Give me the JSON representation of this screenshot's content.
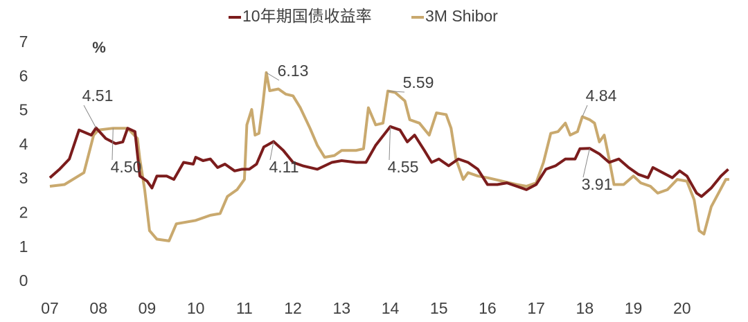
{
  "chart_data": {
    "type": "line",
    "unit_label": "%",
    "xlim": [
      2007,
      2021
    ],
    "ylim": [
      0,
      7
    ],
    "xticks": [
      {
        "value": 2007,
        "label": "07"
      },
      {
        "value": 2008,
        "label": "08"
      },
      {
        "value": 2009,
        "label": "09"
      },
      {
        "value": 2010,
        "label": "10"
      },
      {
        "value": 2011,
        "label": "11"
      },
      {
        "value": 2012,
        "label": "12"
      },
      {
        "value": 2013,
        "label": "13"
      },
      {
        "value": 2014,
        "label": "14"
      },
      {
        "value": 2015,
        "label": "15"
      },
      {
        "value": 2016,
        "label": "16"
      },
      {
        "value": 2017,
        "label": "17"
      },
      {
        "value": 2018,
        "label": "18"
      },
      {
        "value": 2019,
        "label": "19"
      },
      {
        "value": 2020,
        "label": "20"
      }
    ],
    "yticks": [
      0,
      1,
      2,
      3,
      4,
      5,
      6,
      7
    ],
    "grid": false,
    "legend": "top",
    "series": [
      {
        "name": "10年期国债收益率",
        "color": "#7b1c1c",
        "x": [
          2007.0,
          2007.2,
          2007.4,
          2007.6,
          2007.85,
          2007.95,
          2008.15,
          2008.35,
          2008.5,
          2008.6,
          2008.75,
          2008.85,
          2009.0,
          2009.1,
          2009.2,
          2009.4,
          2009.55,
          2009.75,
          2009.95,
          2010.0,
          2010.15,
          2010.3,
          2010.45,
          2010.6,
          2010.8,
          2010.95,
          2011.1,
          2011.25,
          2011.4,
          2011.6,
          2011.8,
          2012.0,
          2012.2,
          2012.5,
          2012.8,
          2013.0,
          2013.3,
          2013.5,
          2013.7,
          2014.0,
          2014.2,
          2014.35,
          2014.5,
          2014.7,
          2014.85,
          2015.0,
          2015.2,
          2015.4,
          2015.6,
          2015.8,
          2016.0,
          2016.2,
          2016.4,
          2016.6,
          2016.8,
          2017.0,
          2017.2,
          2017.4,
          2017.6,
          2017.8,
          2017.9,
          2018.1,
          2018.3,
          2018.5,
          2018.7,
          2018.9,
          2019.1,
          2019.3,
          2019.4,
          2019.6,
          2019.8,
          2019.95,
          2020.1,
          2020.3,
          2020.4,
          2020.6,
          2020.8,
          2020.95
        ],
        "values": [
          3.05,
          3.3,
          3.6,
          4.45,
          4.3,
          4.51,
          4.2,
          4.05,
          4.1,
          4.5,
          4.4,
          3.1,
          2.95,
          2.75,
          3.1,
          3.1,
          3.0,
          3.5,
          3.45,
          3.65,
          3.55,
          3.6,
          3.35,
          3.45,
          3.25,
          3.3,
          3.3,
          3.45,
          3.95,
          4.11,
          3.85,
          3.5,
          3.4,
          3.3,
          3.5,
          3.55,
          3.5,
          3.5,
          4.0,
          4.55,
          4.45,
          4.1,
          4.3,
          3.85,
          3.5,
          3.6,
          3.4,
          3.6,
          3.5,
          3.3,
          2.85,
          2.85,
          2.9,
          2.8,
          2.7,
          2.85,
          3.3,
          3.4,
          3.6,
          3.6,
          3.9,
          3.91,
          3.75,
          3.5,
          3.6,
          3.35,
          3.15,
          3.05,
          3.35,
          3.2,
          3.05,
          3.25,
          3.1,
          2.6,
          2.5,
          2.75,
          3.1,
          3.3
        ]
      },
      {
        "name": "3M Shibor",
        "color": "#c9a96e",
        "x": [
          2007.0,
          2007.3,
          2007.7,
          2007.9,
          2008.0,
          2008.3,
          2008.6,
          2008.8,
          2008.85,
          2008.95,
          2009.05,
          2009.2,
          2009.45,
          2009.6,
          2010.0,
          2010.3,
          2010.5,
          2010.65,
          2010.85,
          2011.0,
          2011.05,
          2011.15,
          2011.22,
          2011.3,
          2011.38,
          2011.45,
          2011.52,
          2011.7,
          2011.85,
          2012.0,
          2012.15,
          2012.35,
          2012.5,
          2012.65,
          2012.85,
          2013.0,
          2013.3,
          2013.45,
          2013.55,
          2013.7,
          2013.85,
          2013.95,
          2014.1,
          2014.3,
          2014.4,
          2014.6,
          2014.8,
          2014.95,
          2015.15,
          2015.25,
          2015.35,
          2015.5,
          2015.6,
          2015.8,
          2016.0,
          2016.3,
          2016.6,
          2016.8,
          2017.0,
          2017.15,
          2017.3,
          2017.45,
          2017.6,
          2017.7,
          2017.85,
          2017.95,
          2018.1,
          2018.2,
          2018.3,
          2018.4,
          2018.5,
          2018.6,
          2018.8,
          2019.0,
          2019.15,
          2019.35,
          2019.5,
          2019.7,
          2019.9,
          2020.1,
          2020.25,
          2020.35,
          2020.45,
          2020.6,
          2020.75,
          2020.9,
          2020.97
        ],
        "values": [
          2.8,
          2.85,
          3.2,
          4.3,
          4.45,
          4.5,
          4.5,
          4.2,
          3.6,
          2.7,
          1.5,
          1.25,
          1.2,
          1.7,
          1.8,
          1.95,
          2.0,
          2.5,
          2.7,
          3.0,
          4.6,
          5.05,
          4.3,
          4.35,
          5.2,
          6.13,
          5.6,
          5.65,
          5.5,
          5.45,
          5.1,
          4.5,
          4.0,
          3.65,
          3.7,
          3.85,
          3.85,
          3.9,
          5.1,
          4.6,
          4.65,
          5.59,
          5.55,
          5.3,
          4.75,
          4.65,
          4.3,
          4.95,
          4.9,
          4.5,
          3.6,
          3.0,
          3.2,
          3.1,
          3.05,
          2.95,
          2.85,
          2.8,
          2.9,
          3.5,
          4.35,
          4.4,
          4.65,
          4.3,
          4.4,
          4.84,
          4.75,
          4.65,
          4.1,
          4.3,
          3.6,
          2.85,
          2.85,
          3.1,
          2.9,
          2.8,
          2.6,
          2.7,
          3.0,
          2.95,
          2.4,
          1.5,
          1.4,
          2.2,
          2.6,
          3.0,
          3.0
        ]
      }
    ],
    "annotations": [
      {
        "label": "4.51",
        "x": 2007.95,
        "y": 4.51
      },
      {
        "label": "4.50",
        "x": 2008.3,
        "y": 4.5
      },
      {
        "label": "6.13",
        "x": 2011.45,
        "y": 6.13
      },
      {
        "label": "4.11",
        "x": 2011.6,
        "y": 4.11
      },
      {
        "label": "5.59",
        "x": 2013.95,
        "y": 5.59
      },
      {
        "label": "4.55",
        "x": 2014.0,
        "y": 4.55
      },
      {
        "label": "4.84",
        "x": 2017.95,
        "y": 4.84
      },
      {
        "label": "3.91",
        "x": 2018.1,
        "y": 3.91
      }
    ]
  }
}
